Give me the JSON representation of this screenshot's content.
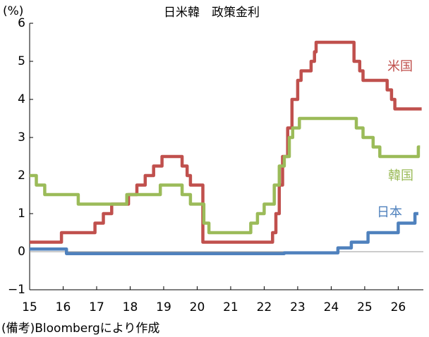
{
  "chart_data": {
    "type": "line",
    "title": "日米韓　政策金利",
    "y_label": "(%)",
    "note": "(備考)Bloombergにより作成",
    "xlim": [
      15,
      26.75
    ],
    "xticks": [
      15,
      16,
      17,
      18,
      19,
      20,
      21,
      22,
      23,
      24,
      25,
      26
    ],
    "ylim": [
      -1,
      6
    ],
    "yticks": [
      {
        "value": -1,
        "label": "−1"
      },
      0,
      1,
      2,
      3,
      4,
      5,
      6
    ],
    "grid": false,
    "zero_line": true,
    "series": [
      {
        "name": "米国",
        "color": "#c0504d",
        "x": [
          15,
          15.95,
          15.95,
          16.95,
          16.95,
          17.2,
          17.2,
          17.45,
          17.45,
          17.95,
          17.95,
          18.2,
          18.2,
          18.45,
          18.45,
          18.7,
          18.7,
          18.95,
          18.95,
          19.55,
          19.55,
          19.7,
          19.7,
          19.8,
          19.8,
          20.17,
          20.17,
          22.25,
          22.25,
          22.35,
          22.35,
          22.45,
          22.45,
          22.55,
          22.55,
          22.7,
          22.7,
          22.83,
          22.83,
          23,
          23,
          23.1,
          23.1,
          23.4,
          23.4,
          23.5,
          23.5,
          23.55,
          23.55,
          24.68,
          24.68,
          24.85,
          24.85,
          24.95,
          24.95,
          25.67,
          25.67,
          25.8,
          25.8,
          25.9,
          25.9,
          26.7
        ],
        "values": [
          0.25,
          0.25,
          0.5,
          0.5,
          0.75,
          0.75,
          1,
          1,
          1.25,
          1.25,
          1.5,
          1.5,
          1.75,
          1.75,
          2,
          2,
          2.25,
          2.25,
          2.5,
          2.5,
          2.25,
          2.25,
          2,
          2,
          1.75,
          1.75,
          0.25,
          0.25,
          0.5,
          0.5,
          1,
          1,
          1.75,
          1.75,
          2.5,
          2.5,
          3.25,
          3.25,
          4,
          4,
          4.5,
          4.5,
          4.75,
          4.75,
          5,
          5,
          5.25,
          5.25,
          5.5,
          5.5,
          5,
          5,
          4.75,
          4.75,
          4.5,
          4.5,
          4.25,
          4.25,
          4,
          4,
          3.75,
          3.75
        ]
      },
      {
        "name": "韓国",
        "color": "#9bbb59",
        "x": [
          15,
          15.2,
          15.2,
          15.45,
          15.45,
          16.45,
          16.45,
          17.9,
          17.9,
          18.9,
          18.9,
          19.55,
          19.55,
          19.8,
          19.8,
          20.2,
          20.2,
          20.35,
          20.35,
          21.6,
          21.6,
          21.8,
          21.8,
          22,
          22,
          22.3,
          22.3,
          22.45,
          22.45,
          22.6,
          22.6,
          22.75,
          22.75,
          22.85,
          22.85,
          23.05,
          23.05,
          24.75,
          24.75,
          24.95,
          24.95,
          25.25,
          25.25,
          25.45,
          25.45,
          26.6,
          26.6,
          26.65
        ],
        "values": [
          2,
          2,
          1.75,
          1.75,
          1.5,
          1.5,
          1.25,
          1.25,
          1.5,
          1.5,
          1.75,
          1.75,
          1.5,
          1.5,
          1.25,
          1.25,
          0.75,
          0.75,
          0.5,
          0.5,
          0.75,
          0.75,
          1,
          1,
          1.25,
          1.25,
          1.75,
          1.75,
          2.25,
          2.25,
          2.5,
          2.5,
          3,
          3,
          3.25,
          3.25,
          3.5,
          3.5,
          3.25,
          3.25,
          3,
          3,
          2.75,
          2.75,
          2.5,
          2.5,
          2.75,
          2.75
        ]
      },
      {
        "name": "日本",
        "color": "#4f81bd",
        "x": [
          15,
          16.1,
          16.1,
          22.6,
          22.6,
          24.2,
          24.2,
          24.6,
          24.6,
          25.1,
          25.1,
          26,
          26,
          26.5,
          26.5,
          26.6
        ],
        "values": [
          0.07,
          0.07,
          -0.05,
          -0.05,
          -0.03,
          -0.03,
          0.1,
          0.1,
          0.25,
          0.25,
          0.5,
          0.5,
          0.75,
          0.75,
          1,
          1
        ]
      }
    ]
  }
}
